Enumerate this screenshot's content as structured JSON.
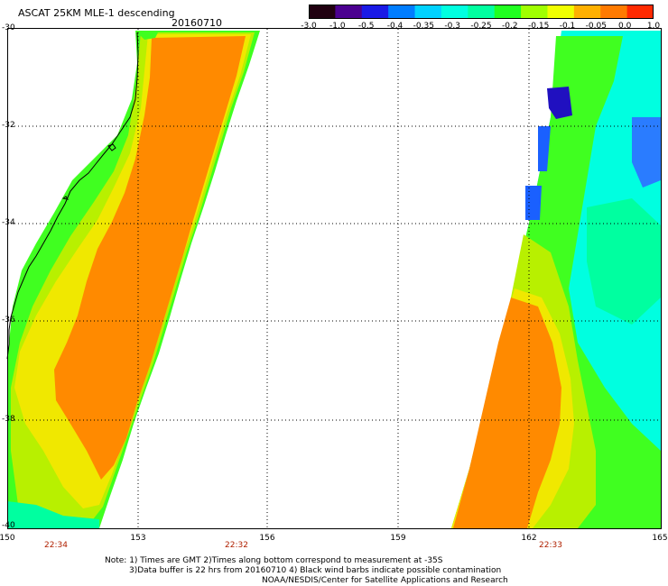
{
  "header": {
    "title": "ASCAT 25KM MLE-1 descending",
    "date": "20160710"
  },
  "colorbar": {
    "tick_labels": [
      "-3.0",
      "-1.0",
      "-0.5",
      "-0.4",
      "-0.35",
      "-0.3",
      "-0.25",
      "-0.2",
      "-0.15",
      "-0.1",
      "-0.05",
      "0.0",
      "1.0"
    ],
    "colors": [
      "#200010",
      "#4b0090",
      "#1a1ae6",
      "#007dff",
      "#00d2ff",
      "#00ffe0",
      "#00ffa0",
      "#20ff20",
      "#a0ff00",
      "#f0ff00",
      "#ffb000",
      "#ff7a00",
      "#ff2a00"
    ]
  },
  "axes": {
    "y_labels": [
      "-30",
      "-32",
      "-34",
      "-36",
      "-38",
      "-40"
    ],
    "x_labels": [
      "150",
      "153",
      "156",
      "159",
      "162",
      "165"
    ]
  },
  "time_labels": [
    "22:34",
    "22:32",
    "22:33"
  ],
  "notes": [
    "Note: 1) Times are GMT 2)Times along bottom correspond to measurement at -35S",
    "3)Data buffer is 22 hrs from 20160710 4) Black wind barbs indicate possible contamination",
    "NOAA/NESDIS/Center for Satellite Applications and Research"
  ],
  "palette": {
    "orange": "#ff8a00",
    "yellow": "#f0e800",
    "yellow_green": "#b8f000",
    "green": "#40ff20",
    "aqua_green": "#00ffa0",
    "cyan": "#00ffe0",
    "blue": "#1a60ff",
    "deep_blue": "#2010c0"
  }
}
